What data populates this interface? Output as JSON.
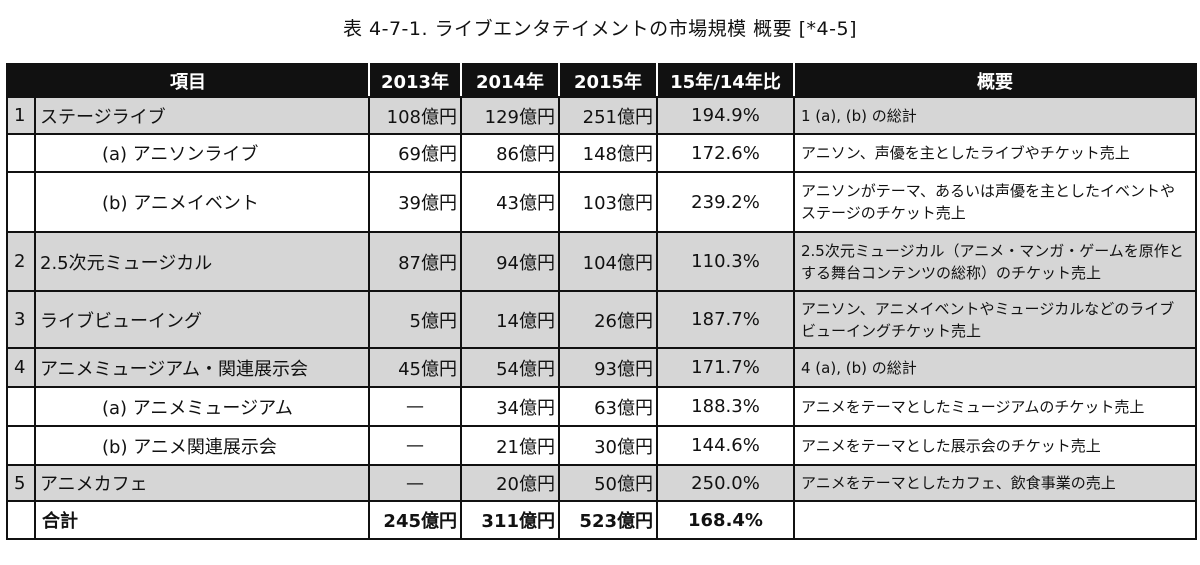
{
  "title": "表 4-7-1.  ライブエンタテイメントの市場規模 概要 [*4-5]",
  "headers": [
    "項目",
    "2013年",
    "2014年",
    "2015年",
    "15年/14年比",
    "概要"
  ],
  "rows": [
    {
      "idx": "1",
      "item": "ステージライブ",
      "y2013": "108億円",
      "y2014": "129億円",
      "y2015": "251億円",
      "ratio": "194.9%",
      "desc": "1 (a), (b) の総計",
      "style": "gray",
      "sub": false
    },
    {
      "idx": "",
      "item": "(a) アニソンライブ",
      "y2013": "69億円",
      "y2014": "86億円",
      "y2015": "148億円",
      "ratio": "172.6%",
      "desc": "アニソン、声優を主としたライブやチケット売上",
      "style": "white",
      "sub": true
    },
    {
      "idx": "",
      "item": "(b) アニメイベント",
      "y2013": "39億円",
      "y2014": "43億円",
      "y2015": "103億円",
      "ratio": "239.2%",
      "desc": "アニソンがテーマ、あるいは声優を主としたイベントやステージのチケット売上",
      "style": "white",
      "sub": true
    },
    {
      "idx": "2",
      "item": "2.5次元ミュージカル",
      "y2013": "87億円",
      "y2014": "94億円",
      "y2015": "104億円",
      "ratio": "110.3%",
      "desc": "2.5次元ミュージカル（アニメ・マンガ・ゲームを原作とする舞台コンテンツの総称）のチケット売上",
      "style": "gray",
      "sub": false
    },
    {
      "idx": "3",
      "item": "ライブビューイング",
      "y2013": "5億円",
      "y2014": "14億円",
      "y2015": "26億円",
      "ratio": "187.7%",
      "desc": "アニソン、アニメイベントやミュージカルなどのライブビューイングチケット売上",
      "style": "gray",
      "sub": false
    },
    {
      "idx": "4",
      "item": "アニメミュージアム・関連展示会",
      "y2013": "45億円",
      "y2014": "54億円",
      "y2015": "93億円",
      "ratio": "171.7%",
      "desc": "4 (a), (b) の総計",
      "style": "gray",
      "sub": false
    },
    {
      "idx": "",
      "item": "(a) アニメミュージアム",
      "y2013": "—",
      "y2014": "34億円",
      "y2015": "63億円",
      "ratio": "188.3%",
      "desc": "アニメをテーマとしたミュージアムのチケット売上",
      "style": "white",
      "sub": true
    },
    {
      "idx": "",
      "item": "(b) アニメ関連展示会",
      "y2013": "—",
      "y2014": "21億円",
      "y2015": "30億円",
      "ratio": "144.6%",
      "desc": "アニメをテーマとした展示会のチケット売上",
      "style": "white",
      "sub": true
    },
    {
      "idx": "5",
      "item": "アニメカフェ",
      "y2013": "—",
      "y2014": "20億円",
      "y2015": "50億円",
      "ratio": "250.0%",
      "desc": "アニメをテーマとしたカフェ、飲食事業の売上",
      "style": "gray",
      "sub": false
    }
  ],
  "total": {
    "item": "合計",
    "y2013": "245億円",
    "y2014": "311億円",
    "y2015": "523億円",
    "ratio": "168.4%",
    "desc": ""
  }
}
